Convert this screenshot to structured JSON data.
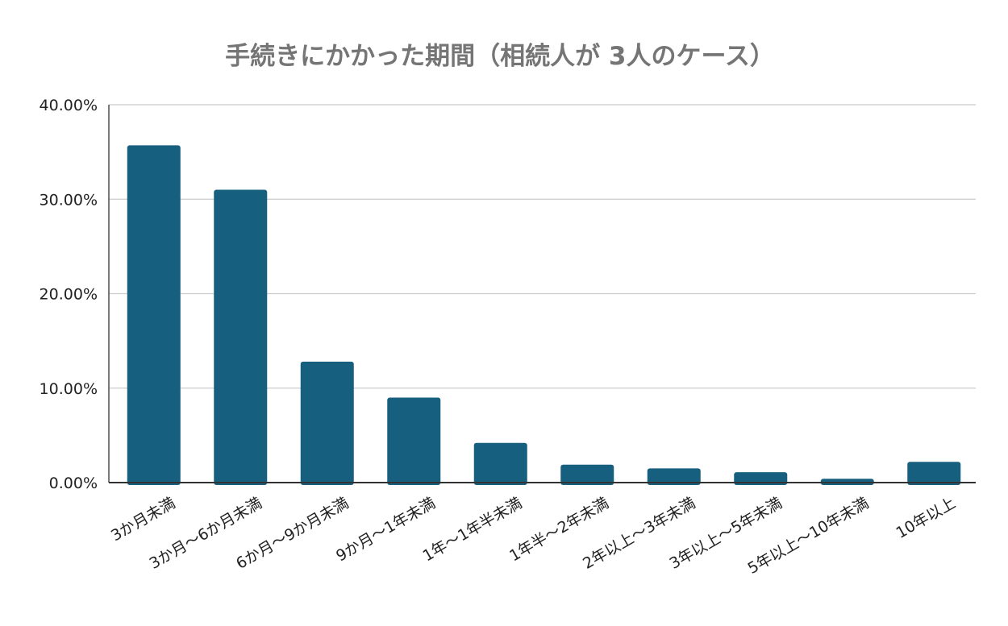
{
  "chart_data": {
    "type": "bar",
    "title": "手続きにかかった期間（相続人が 3人のケース）",
    "xlabel": "",
    "ylabel": "",
    "ylim": [
      0,
      40
    ],
    "yticks": [
      "0.00%",
      "10.00%",
      "20.00%",
      "30.00%",
      "40.00%"
    ],
    "grid": true,
    "legend": "none",
    "bar_color": "#175f7f",
    "categories": [
      "3か月未満",
      "3か月～6か月未満",
      "6か月～9か月未満",
      "9か月～1年未満",
      "1年～1年半未満",
      "1年半～2年未満",
      "2年以上～3年未満",
      "3年以上～5年未満",
      "5年以上～10年未満",
      "10年以上"
    ],
    "values": [
      35.7,
      31.0,
      12.8,
      9.0,
      4.2,
      1.9,
      1.5,
      1.1,
      0.4,
      2.2
    ]
  }
}
